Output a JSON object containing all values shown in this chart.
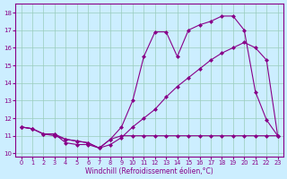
{
  "xlabel": "Windchill (Refroidissement éolien,°C)",
  "x": [
    0,
    1,
    2,
    3,
    4,
    5,
    6,
    7,
    8,
    9,
    10,
    11,
    12,
    13,
    14,
    15,
    16,
    17,
    18,
    19,
    20,
    21,
    22,
    23
  ],
  "line1": [
    11.5,
    11.4,
    11.1,
    11.1,
    10.6,
    10.5,
    10.5,
    10.3,
    10.8,
    11.0,
    11.0,
    11.0,
    11.0,
    11.0,
    11.0,
    11.0,
    11.0,
    11.0,
    11.0,
    11.0,
    11.0,
    11.0,
    11.0,
    11.0
  ],
  "line2": [
    11.5,
    11.4,
    11.1,
    11.1,
    10.8,
    10.7,
    10.6,
    10.3,
    10.5,
    10.9,
    11.5,
    12.0,
    12.5,
    13.2,
    13.8,
    14.3,
    14.8,
    15.3,
    15.7,
    16.0,
    16.3,
    16.0,
    15.3,
    11.0
  ],
  "line3": [
    11.5,
    11.4,
    11.1,
    11.0,
    10.8,
    10.7,
    10.6,
    10.3,
    10.8,
    11.5,
    13.0,
    15.5,
    16.9,
    16.9,
    15.5,
    17.0,
    17.3,
    17.5,
    17.8,
    17.8,
    17.0,
    13.5,
    11.9,
    11.0
  ],
  "color": "#880088",
  "bg_color": "#cceeff",
  "grid_color": "#99ccbb",
  "ylim": [
    9.8,
    18.5
  ],
  "xlim": [
    -0.5,
    23.5
  ],
  "yticks": [
    10,
    11,
    12,
    13,
    14,
    15,
    16,
    17,
    18
  ],
  "xticks": [
    0,
    1,
    2,
    3,
    4,
    5,
    6,
    7,
    8,
    9,
    10,
    11,
    12,
    13,
    14,
    15,
    16,
    17,
    18,
    19,
    20,
    21,
    22,
    23
  ]
}
